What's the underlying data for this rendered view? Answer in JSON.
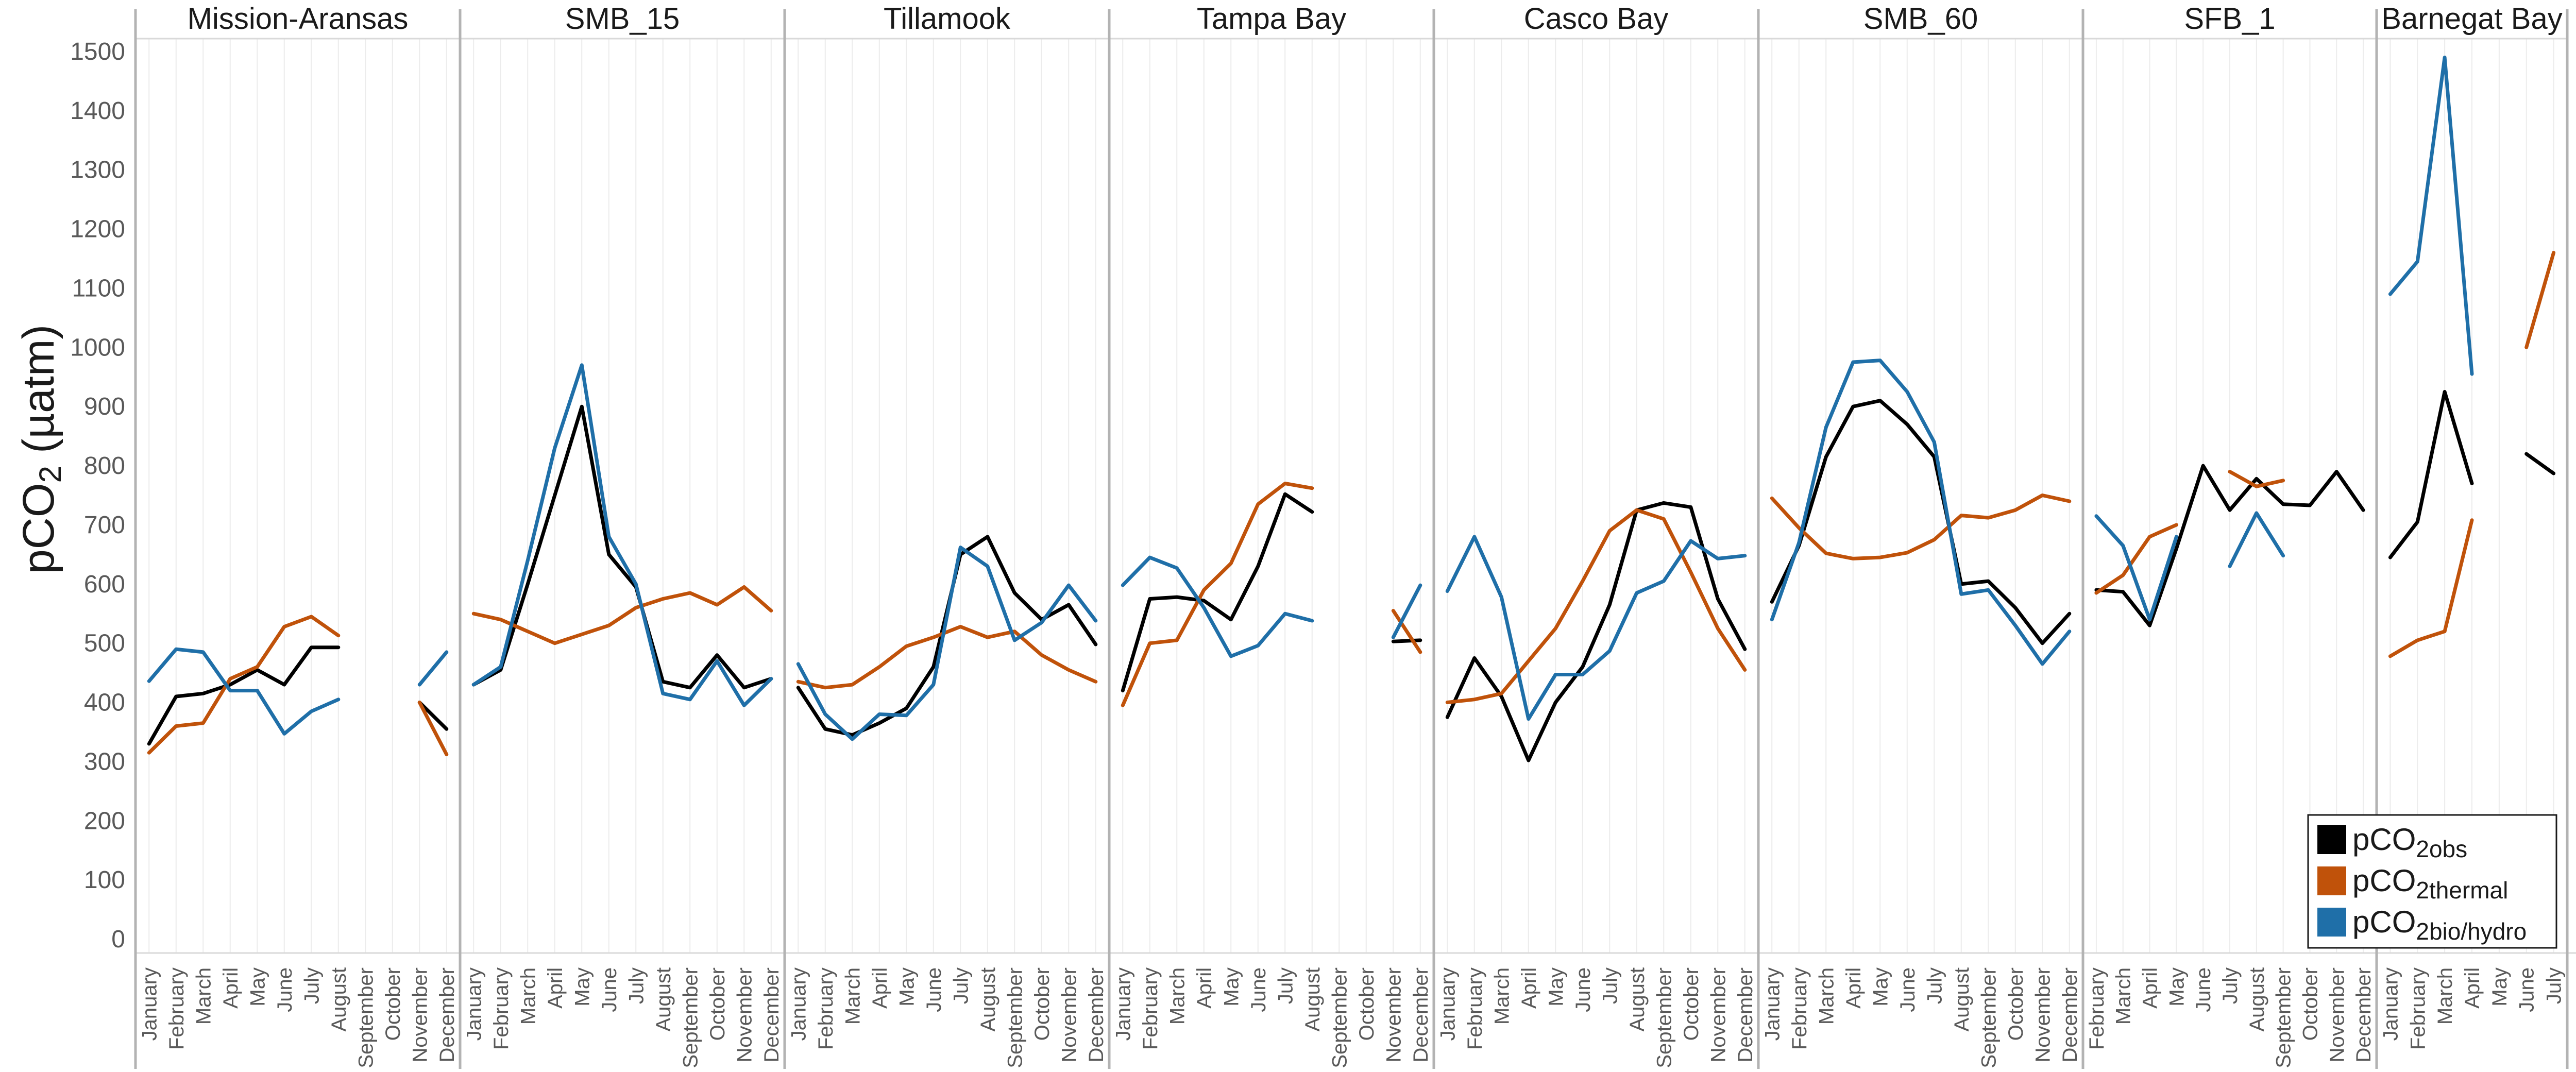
{
  "chart_data": {
    "type": "line",
    "ylabel": {
      "main": "pCO",
      "sub": "2",
      "rest": " (µatm)"
    },
    "ylim": [
      0,
      1500
    ],
    "yticks": [
      0,
      100,
      200,
      300,
      400,
      500,
      600,
      700,
      800,
      900,
      1000,
      1100,
      1200,
      1300,
      1400,
      1500
    ],
    "grid": "vertical",
    "legend_position": "bottom-right",
    "series": [
      {
        "key": "obs",
        "name_main": "pCO",
        "name_sub": "2obs",
        "color": "#000000"
      },
      {
        "key": "thermal",
        "name_main": "pCO",
        "name_sub": "2thermal",
        "color": "#c0520a"
      },
      {
        "key": "bio",
        "name_main": "pCO",
        "name_sub": "2bio/hydro",
        "color": "#1f6fa8"
      }
    ],
    "panels": [
      {
        "title": "Mission-Aransas",
        "months": [
          "January",
          "February",
          "March",
          "April",
          "May",
          "June",
          "July",
          "August",
          "September",
          "October",
          "November",
          "December"
        ],
        "obs": [
          330,
          410,
          415,
          430,
          455,
          430,
          493,
          493,
          null,
          null,
          400,
          355
        ],
        "thermal": [
          315,
          360,
          365,
          440,
          460,
          528,
          545,
          513,
          null,
          null,
          400,
          312
        ],
        "bio": [
          436,
          490,
          485,
          420,
          420,
          347,
          385,
          405,
          null,
          null,
          430,
          485
        ]
      },
      {
        "title": "SMB_15",
        "months": [
          "January",
          "February",
          "March",
          "April",
          "May",
          "June",
          "July",
          "August",
          "September",
          "October",
          "November",
          "December"
        ],
        "obs": [
          430,
          455,
          600,
          750,
          900,
          650,
          595,
          435,
          425,
          480,
          425,
          440
        ],
        "thermal": [
          550,
          540,
          520,
          500,
          515,
          530,
          560,
          575,
          585,
          565,
          595,
          555
        ],
        "bio": [
          430,
          460,
          640,
          830,
          970,
          680,
          600,
          415,
          405,
          470,
          395,
          440
        ]
      },
      {
        "title": "Tillamook",
        "months": [
          "January",
          "February",
          "March",
          "April",
          "May",
          "June",
          "July",
          "August",
          "September",
          "October",
          "November",
          "December"
        ],
        "obs": [
          425,
          355,
          345,
          365,
          390,
          460,
          650,
          680,
          585,
          540,
          565,
          498
        ],
        "thermal": [
          435,
          425,
          430,
          460,
          495,
          510,
          528,
          510,
          520,
          480,
          455,
          435
        ],
        "bio": [
          465,
          380,
          338,
          380,
          378,
          430,
          662,
          630,
          505,
          535,
          598,
          538
        ]
      },
      {
        "title": "Tampa Bay",
        "months": [
          "January",
          "February",
          "March",
          "April",
          "May",
          "June",
          "July",
          "August",
          "September",
          "October",
          "November",
          "December"
        ],
        "obs": [
          420,
          575,
          578,
          572,
          540,
          630,
          752,
          722,
          null,
          null,
          503,
          505
        ],
        "thermal": [
          395,
          500,
          505,
          590,
          635,
          735,
          770,
          762,
          null,
          null,
          555,
          485
        ],
        "bio": [
          598,
          645,
          627,
          560,
          478,
          496,
          550,
          538,
          null,
          null,
          510,
          598
        ]
      },
      {
        "title": "Casco Bay",
        "months": [
          "January",
          "February",
          "March",
          "April",
          "May",
          "June",
          "July",
          "August",
          "September",
          "October",
          "November",
          "December"
        ],
        "obs": [
          375,
          475,
          410,
          302,
          400,
          460,
          565,
          725,
          737,
          730,
          575,
          490
        ],
        "thermal": [
          400,
          405,
          415,
          470,
          525,
          605,
          690,
          725,
          710,
          620,
          525,
          455
        ],
        "bio": [
          588,
          680,
          578,
          372,
          447,
          447,
          487,
          585,
          605,
          673,
          643,
          648
        ]
      },
      {
        "title": "SMB_60",
        "months": [
          "January",
          "February",
          "March",
          "April",
          "May",
          "June",
          "July",
          "August",
          "September",
          "October",
          "November",
          "December"
        ],
        "obs": [
          570,
          665,
          815,
          900,
          910,
          870,
          815,
          600,
          605,
          560,
          500,
          550
        ],
        "thermal": [
          745,
          695,
          652,
          643,
          645,
          653,
          675,
          716,
          712,
          725,
          750,
          740
        ],
        "bio": [
          540,
          670,
          865,
          975,
          978,
          925,
          840,
          583,
          590,
          530,
          465,
          520
        ]
      },
      {
        "title": "SFB_1",
        "months": [
          "February",
          "March",
          "April",
          "May",
          "June",
          "July",
          "August",
          "September",
          "October",
          "November",
          "December"
        ],
        "obs": [
          590,
          587,
          530,
          660,
          800,
          725,
          778,
          735,
          733,
          790,
          725
        ],
        "thermal": [
          585,
          615,
          680,
          700,
          null,
          790,
          765,
          775,
          null,
          null,
          null
        ],
        "bio": [
          715,
          665,
          540,
          680,
          null,
          630,
          720,
          648,
          null,
          null,
          null
        ]
      },
      {
        "title": "Barnegat Bay",
        "months": [
          "January",
          "February",
          "March",
          "April",
          "May",
          "June",
          "July"
        ],
        "obs": [
          645,
          705,
          925,
          770,
          null,
          820,
          787
        ],
        "thermal": [
          478,
          505,
          520,
          708,
          null,
          1000,
          1160
        ],
        "bio": [
          1090,
          1145,
          1490,
          955,
          null,
          null,
          null
        ]
      }
    ]
  }
}
